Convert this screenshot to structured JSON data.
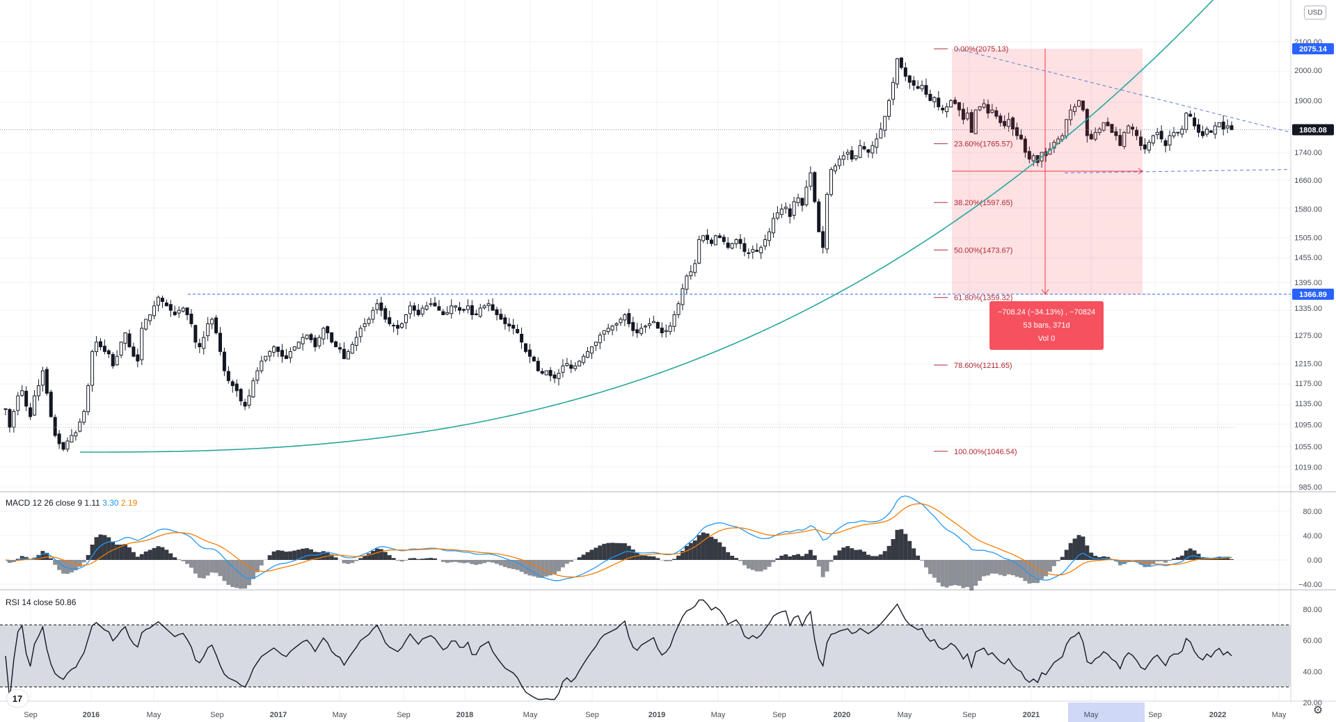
{
  "toolbar": {
    "currency": "USD"
  },
  "price_axis": {
    "ticks": [
      "2100.00",
      "2000.00",
      "1900.00",
      "1740.00",
      "1660.00",
      "1580.00",
      "1505.00",
      "1455.00",
      "1395.00",
      "1335.00",
      "1275.00",
      "1215.00",
      "1175.00",
      "1135.00",
      "1095.00",
      "1055.00",
      "1019.00",
      "985.00"
    ],
    "badges": [
      {
        "value": "2075.14",
        "color": "#2962ff"
      },
      {
        "value": "1808.08",
        "color": "#131722"
      },
      {
        "value": "1366.89",
        "color": "#2962ff"
      }
    ]
  },
  "time_axis": {
    "labels": [
      {
        "text": "Sep",
        "bold": false
      },
      {
        "text": "2016",
        "bold": true
      },
      {
        "text": "May",
        "bold": false
      },
      {
        "text": "Sep",
        "bold": false
      },
      {
        "text": "2017",
        "bold": true
      },
      {
        "text": "May",
        "bold": false
      },
      {
        "text": "Sep",
        "bold": false
      },
      {
        "text": "2018",
        "bold": true
      },
      {
        "text": "May",
        "bold": false
      },
      {
        "text": "Sep",
        "bold": false
      },
      {
        "text": "2019",
        "bold": true
      },
      {
        "text": "May",
        "bold": false
      },
      {
        "text": "Sep",
        "bold": false
      },
      {
        "text": "2020",
        "bold": true
      },
      {
        "text": "May",
        "bold": false
      },
      {
        "text": "Sep",
        "bold": false
      },
      {
        "text": "2021",
        "bold": true
      },
      {
        "text": "May",
        "bold": false
      },
      {
        "text": "Sep",
        "bold": false
      },
      {
        "text": "2022",
        "bold": true
      },
      {
        "text": "May",
        "bold": false
      }
    ]
  },
  "fibonacci": [
    {
      "label": "0.00%(2075.13)",
      "price": 2075.13
    },
    {
      "label": "23.60%(1765.57)",
      "price": 1765.57
    },
    {
      "label": "38.20%(1597.65)",
      "price": 1597.65
    },
    {
      "label": "50.00%(1473.67)",
      "price": 1473.67
    },
    {
      "label": "61.80%(1359.32)",
      "price": 1359.32
    },
    {
      "label": "78.60%(1211.65)",
      "price": 1211.65
    },
    {
      "label": "100.00%(1046.54)",
      "price": 1046.54
    }
  ],
  "measure_box": {
    "line1": "−708.24 (−34.13%) , −70824",
    "line2": "53 bars, 371d",
    "line3": "Vol 0"
  },
  "macd": {
    "title": "MACD 12 26 close 9",
    "value1": "1.11",
    "value1_color": "#131722",
    "value2": "3.30",
    "value2_color": "#2196f3",
    "value3": "2.19",
    "value3_color": "#f57c00",
    "ticks": [
      "80.00",
      "40.00",
      "0.00",
      "−40.00"
    ]
  },
  "rsi": {
    "title": "RSI 14 close",
    "value": "50.86",
    "ticks": [
      "80.00",
      "60.00",
      "40.00",
      "20.00"
    ]
  },
  "chart_data": {
    "type": "candlestick",
    "instrument_currency": "USD",
    "last_price": 1808.08,
    "period": "weekly, Jul 2015 – Apr 2022",
    "close_path": [
      1125,
      1090,
      1120,
      1150,
      1160,
      1130,
      1110,
      1150,
      1170,
      1200,
      1155,
      1110,
      1075,
      1060,
      1050,
      1065,
      1075,
      1080,
      1100,
      1120,
      1170,
      1240,
      1260,
      1250,
      1240,
      1235,
      1210,
      1230,
      1260,
      1280,
      1250,
      1230,
      1220,
      1290,
      1310,
      1320,
      1340,
      1360,
      1350,
      1340,
      1330,
      1320,
      1330,
      1335,
      1320,
      1300,
      1260,
      1250,
      1270,
      1300,
      1310,
      1280,
      1240,
      1200,
      1180,
      1170,
      1160,
      1140,
      1130,
      1150,
      1180,
      1200,
      1220,
      1230,
      1240,
      1250,
      1240,
      1230,
      1225,
      1240,
      1250,
      1260,
      1270,
      1275,
      1265,
      1250,
      1270,
      1290,
      1280,
      1260,
      1250,
      1245,
      1225,
      1240,
      1255,
      1270,
      1290,
      1300,
      1310,
      1330,
      1345,
      1330,
      1310,
      1300,
      1295,
      1290,
      1300,
      1320,
      1340,
      1330,
      1320,
      1335,
      1340,
      1345,
      1340,
      1330,
      1320,
      1325,
      1340,
      1340,
      1330,
      1330,
      1340,
      1320,
      1320,
      1335,
      1340,
      1345,
      1330,
      1320,
      1310,
      1300,
      1295,
      1290,
      1280,
      1260,
      1240,
      1230,
      1220,
      1200,
      1195,
      1200,
      1190,
      1185,
      1195,
      1210,
      1215,
      1205,
      1210,
      1220,
      1230,
      1240,
      1250,
      1260,
      1275,
      1285,
      1290,
      1295,
      1300,
      1310,
      1320,
      1300,
      1285,
      1280,
      1290,
      1295,
      1300,
      1305,
      1290,
      1280,
      1285,
      1295,
      1320,
      1345,
      1380,
      1410,
      1420,
      1440,
      1500,
      1510,
      1500,
      1490,
      1510,
      1505,
      1495,
      1480,
      1490,
      1500,
      1490,
      1470,
      1465,
      1475,
      1470,
      1480,
      1500,
      1520,
      1555,
      1570,
      1580,
      1585,
      1560,
      1600,
      1610,
      1590,
      1640,
      1680,
      1600,
      1520,
      1480,
      1620,
      1690,
      1700,
      1720,
      1730,
      1740,
      1720,
      1730,
      1760,
      1750,
      1740,
      1760,
      1780,
      1810,
      1850,
      1900,
      1960,
      2040,
      2010,
      1980,
      1960,
      1950,
      1940,
      1950,
      1920,
      1900,
      1910,
      1880,
      1870,
      1880,
      1900,
      1890,
      1870,
      1840,
      1860,
      1800,
      1870,
      1880,
      1890,
      1860,
      1870,
      1850,
      1830,
      1820,
      1840,
      1810,
      1790,
      1780,
      1740,
      1720,
      1730,
      1710,
      1740,
      1730,
      1750,
      1770,
      1780,
      1790,
      1840,
      1870,
      1880,
      1900,
      1870,
      1790,
      1780,
      1800,
      1810,
      1830,
      1820,
      1800,
      1790,
      1760,
      1800,
      1820,
      1810,
      1790,
      1760,
      1750,
      1770,
      1790,
      1800,
      1780,
      1760,
      1790,
      1800,
      1800,
      1810,
      1860,
      1850,
      1820,
      1800,
      1790,
      1810,
      1800,
      1820,
      1830,
      1810,
      1820,
      1808
    ],
    "fib_levels": [
      2075.13,
      1765.57,
      1597.65,
      1473.67,
      1359.32,
      1211.65,
      1046.54
    ],
    "horizontal_levels": [
      1366.89
    ],
    "measure": {
      "change": -708.24,
      "change_pct": -34.13,
      "bars": 53,
      "days": 371,
      "volume": 0
    },
    "macd": {
      "fast": 12,
      "slow": 26,
      "signal": 9,
      "last_hist": 1.11,
      "last_macd": 3.3,
      "last_signal": 2.19,
      "ylim": [
        -40,
        80
      ]
    },
    "rsi": {
      "length": 14,
      "last": 50.86,
      "upper_band": 70,
      "lower_band": 30,
      "ylim": [
        20,
        80
      ]
    },
    "ylim": [
      985,
      2100
    ],
    "grid": true
  }
}
